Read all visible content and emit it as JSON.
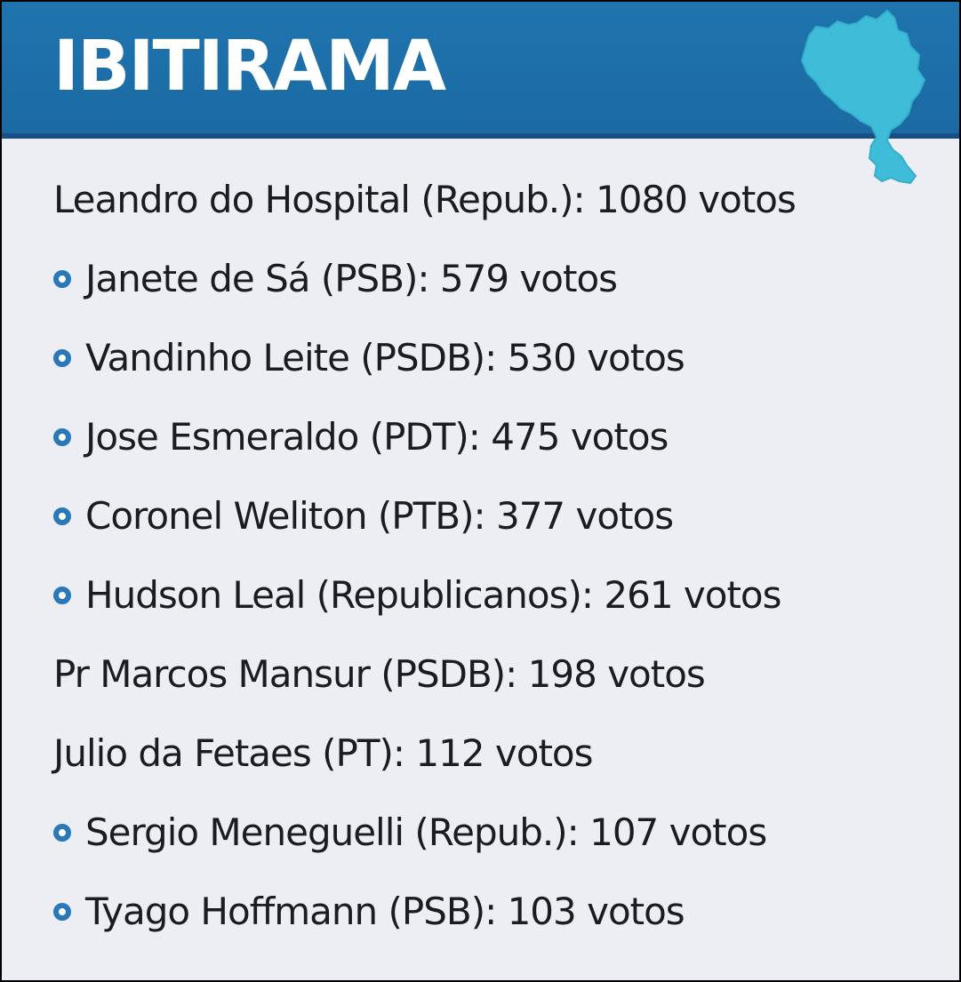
{
  "header": {
    "title": "IBITIRAMA",
    "icon": "municipality-map-icon"
  },
  "colors": {
    "header_bg": "#1f74ae",
    "map_fill": "#3fbcd8",
    "bullet": "#2a78b8",
    "text": "#1b1c20",
    "background": "#eceef4"
  },
  "candidates": [
    {
      "text": "Leandro do Hospital (Repub.): 1080 votos",
      "bullet": false
    },
    {
      "text": "Janete de Sá (PSB): 579 votos",
      "bullet": true
    },
    {
      "text": "Vandinho Leite (PSDB): 530 votos",
      "bullet": true
    },
    {
      "text": "Jose Esmeraldo (PDT): 475 votos",
      "bullet": true
    },
    {
      "text": "Coronel Weliton (PTB): 377 votos",
      "bullet": true
    },
    {
      "text": "Hudson Leal (Republicanos): 261 votos",
      "bullet": true
    },
    {
      "text": "Pr Marcos Mansur (PSDB): 198 votos",
      "bullet": false
    },
    {
      "text": "Julio da Fetaes (PT): 112 votos",
      "bullet": false
    },
    {
      "text": "Sergio Meneguelli (Repub.): 107 votos",
      "bullet": true
    },
    {
      "text": "Tyago Hoffmann (PSB): 103 votos",
      "bullet": true
    }
  ]
}
